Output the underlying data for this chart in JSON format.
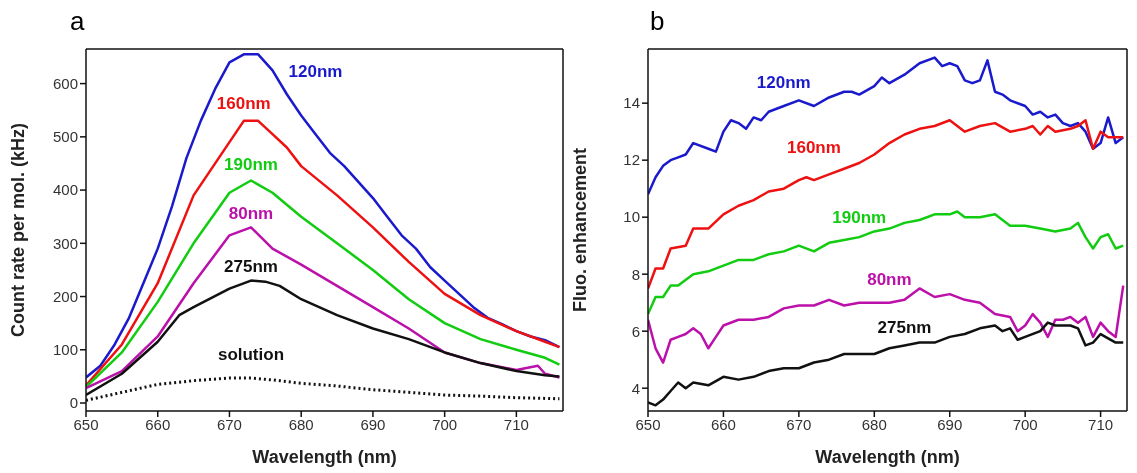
{
  "chart_data": [
    {
      "type": "line",
      "title": "a",
      "xlabel": "Wavelength (nm)",
      "ylabel": "Count rate per mol. (kHz)",
      "xlim": [
        650,
        716.5
      ],
      "xticks": [
        650,
        660,
        670,
        680,
        690,
        700,
        710
      ],
      "ylim": [
        -15,
        665
      ],
      "yticks": [
        0,
        100,
        200,
        300,
        400,
        500,
        600
      ],
      "grid": false,
      "legend": false,
      "marker": "none",
      "line_style": "solid",
      "series": [
        {
          "name": "120nm",
          "color": "#1a1acc",
          "x": [
            650,
            652,
            654,
            656,
            658,
            660,
            662,
            664,
            666,
            668,
            670,
            672,
            674,
            676,
            678,
            680,
            682,
            684,
            686,
            688,
            690,
            692,
            694,
            696,
            698,
            700,
            702,
            704,
            706,
            708,
            710,
            712,
            714,
            716
          ],
          "values": [
            48,
            70,
            110,
            160,
            225,
            290,
            370,
            460,
            530,
            590,
            640,
            655,
            655,
            625,
            580,
            540,
            505,
            470,
            445,
            415,
            385,
            350,
            315,
            290,
            255,
            230,
            205,
            180,
            160,
            148,
            135,
            125,
            118,
            105
          ]
        },
        {
          "name": "160nm",
          "color": "#ee1111",
          "x": [
            650,
            655,
            660,
            665,
            670,
            672,
            674,
            676,
            678,
            680,
            685,
            690,
            695,
            700,
            705,
            710,
            714,
            716
          ],
          "values": [
            33,
            110,
            225,
            390,
            490,
            530,
            530,
            505,
            480,
            445,
            390,
            330,
            265,
            205,
            165,
            135,
            115,
            105
          ]
        },
        {
          "name": "190nm",
          "color": "#11cc11",
          "x": [
            650,
            655,
            660,
            665,
            670,
            673,
            676,
            680,
            685,
            690,
            695,
            700,
            705,
            710,
            714,
            716
          ],
          "values": [
            30,
            95,
            190,
            300,
            395,
            418,
            395,
            350,
            300,
            250,
            195,
            150,
            120,
            100,
            85,
            72
          ]
        },
        {
          "name": "80nm",
          "color": "#bb11aa",
          "x": [
            650,
            655,
            660,
            665,
            670,
            673,
            676,
            680,
            685,
            690,
            695,
            700,
            705,
            710,
            713,
            714,
            716
          ],
          "values": [
            28,
            60,
            125,
            225,
            315,
            330,
            290,
            260,
            220,
            180,
            140,
            95,
            75,
            62,
            70,
            55,
            48
          ]
        },
        {
          "name": "275nm",
          "color": "#111111",
          "x": [
            650,
            655,
            660,
            663,
            665,
            670,
            673,
            675,
            677,
            680,
            685,
            690,
            695,
            700,
            705,
            710,
            714,
            716
          ],
          "values": [
            15,
            55,
            115,
            165,
            180,
            215,
            230,
            228,
            220,
            195,
            165,
            140,
            120,
            95,
            75,
            60,
            52,
            50
          ]
        },
        {
          "name": "solution",
          "color": "#111111",
          "line_style": "dotted",
          "x": [
            650,
            655,
            660,
            665,
            670,
            673,
            677,
            680,
            685,
            690,
            695,
            700,
            705,
            710,
            716
          ],
          "values": [
            5,
            20,
            35,
            42,
            47,
            47,
            42,
            37,
            32,
            25,
            20,
            15,
            13,
            10,
            8
          ]
        }
      ]
    },
    {
      "type": "line",
      "title": "b",
      "xlabel": "Wavelength (nm)",
      "ylabel": "Fluo. enhancement",
      "xlim": [
        650,
        713.5
      ],
      "xticks": [
        650,
        660,
        670,
        680,
        690,
        700,
        710
      ],
      "ylim": [
        3.2,
        15.9
      ],
      "yticks": [
        4,
        6,
        8,
        10,
        12,
        14
      ],
      "grid": false,
      "legend": false,
      "marker": "none",
      "line_style": "solid",
      "series": [
        {
          "name": "120nm",
          "color": "#1a1acc",
          "x": [
            650,
            651,
            652,
            653,
            654,
            655,
            656,
            658,
            659,
            660,
            661,
            662,
            663,
            664,
            665,
            666,
            668,
            670,
            672,
            674,
            676,
            677,
            678,
            680,
            681,
            682,
            684,
            686,
            688,
            689,
            690,
            691,
            692,
            693,
            694,
            695,
            696,
            697,
            698,
            700,
            701,
            702,
            703,
            704,
            705,
            706,
            707,
            708,
            709,
            710,
            711,
            712,
            713
          ],
          "values": [
            10.8,
            11.4,
            11.8,
            12.0,
            12.1,
            12.2,
            12.6,
            12.4,
            12.3,
            13.0,
            13.4,
            13.3,
            13.1,
            13.5,
            13.4,
            13.7,
            13.9,
            14.1,
            13.9,
            14.2,
            14.4,
            14.4,
            14.3,
            14.6,
            14.9,
            14.7,
            15.0,
            15.4,
            15.6,
            15.3,
            15.4,
            15.3,
            14.8,
            14.7,
            14.8,
            15.5,
            14.4,
            14.3,
            14.1,
            13.9,
            13.6,
            13.7,
            13.5,
            13.6,
            13.3,
            13.2,
            13.3,
            13.0,
            12.4,
            12.6,
            13.5,
            12.6,
            12.8
          ]
        },
        {
          "name": "160nm",
          "color": "#ee1111",
          "x": [
            650,
            651,
            652,
            653,
            655,
            656,
            658,
            660,
            662,
            664,
            666,
            668,
            670,
            671,
            672,
            674,
            676,
            678,
            680,
            682,
            684,
            686,
            688,
            690,
            692,
            694,
            696,
            698,
            700,
            701,
            702,
            703,
            704,
            706,
            707,
            708,
            709,
            710,
            711,
            712,
            713
          ],
          "values": [
            7.5,
            8.2,
            8.2,
            8.9,
            9.0,
            9.6,
            9.6,
            10.1,
            10.4,
            10.6,
            10.9,
            11.0,
            11.3,
            11.4,
            11.3,
            11.5,
            11.7,
            11.9,
            12.2,
            12.6,
            12.9,
            13.1,
            13.2,
            13.4,
            13.0,
            13.2,
            13.3,
            13.0,
            13.1,
            13.2,
            12.9,
            13.2,
            13.0,
            13.1,
            13.2,
            13.4,
            12.4,
            13.0,
            12.8,
            12.8,
            12.8
          ]
        },
        {
          "name": "190nm",
          "color": "#11cc11",
          "x": [
            650,
            651,
            652,
            653,
            654,
            656,
            658,
            660,
            662,
            664,
            666,
            668,
            670,
            672,
            674,
            676,
            678,
            680,
            682,
            684,
            686,
            688,
            690,
            691,
            692,
            694,
            696,
            698,
            700,
            702,
            704,
            706,
            707,
            708,
            709,
            710,
            711,
            712,
            713
          ],
          "values": [
            6.6,
            7.2,
            7.2,
            7.6,
            7.6,
            8.0,
            8.1,
            8.3,
            8.5,
            8.5,
            8.7,
            8.8,
            9.0,
            8.8,
            9.1,
            9.2,
            9.3,
            9.5,
            9.6,
            9.8,
            9.9,
            10.1,
            10.1,
            10.2,
            10.0,
            10.0,
            10.1,
            9.7,
            9.7,
            9.6,
            9.5,
            9.6,
            9.8,
            9.3,
            8.9,
            9.3,
            9.4,
            8.9,
            9.0
          ]
        },
        {
          "name": "80nm",
          "color": "#bb11aa",
          "x": [
            650,
            651,
            652,
            653,
            654,
            655,
            656,
            657,
            658,
            659,
            660,
            662,
            664,
            666,
            668,
            670,
            672,
            674,
            676,
            678,
            680,
            682,
            684,
            686,
            688,
            690,
            692,
            694,
            696,
            698,
            699,
            700,
            701,
            702,
            703,
            704,
            705,
            706,
            707,
            708,
            709,
            710,
            711,
            712,
            713
          ],
          "values": [
            6.4,
            5.4,
            4.9,
            5.7,
            5.8,
            5.9,
            6.1,
            5.9,
            5.4,
            5.8,
            6.2,
            6.4,
            6.4,
            6.5,
            6.8,
            6.9,
            6.9,
            7.1,
            6.9,
            7.0,
            7.0,
            7.0,
            7.1,
            7.5,
            7.2,
            7.3,
            7.1,
            7.0,
            6.6,
            6.5,
            6.0,
            6.2,
            6.6,
            6.3,
            5.8,
            6.4,
            6.4,
            6.5,
            6.3,
            6.5,
            5.8,
            6.3,
            6.0,
            5.8,
            7.6
          ]
        },
        {
          "name": "275nm",
          "color": "#111111",
          "x": [
            650,
            651,
            652,
            653,
            654,
            655,
            656,
            658,
            660,
            662,
            664,
            666,
            668,
            670,
            672,
            674,
            676,
            678,
            680,
            682,
            684,
            686,
            688,
            690,
            692,
            694,
            696,
            697,
            698,
            699,
            700,
            702,
            703,
            704,
            705,
            706,
            707,
            708,
            709,
            710,
            712,
            713
          ],
          "values": [
            3.5,
            3.4,
            3.6,
            3.9,
            4.2,
            4.0,
            4.2,
            4.1,
            4.4,
            4.3,
            4.4,
            4.6,
            4.7,
            4.7,
            4.9,
            5.0,
            5.2,
            5.2,
            5.2,
            5.4,
            5.5,
            5.6,
            5.6,
            5.8,
            5.9,
            6.1,
            6.2,
            6.0,
            6.1,
            5.7,
            5.8,
            6.0,
            6.3,
            6.2,
            6.2,
            6.2,
            6.1,
            5.5,
            5.6,
            5.9,
            5.6,
            5.6
          ]
        }
      ]
    }
  ]
}
